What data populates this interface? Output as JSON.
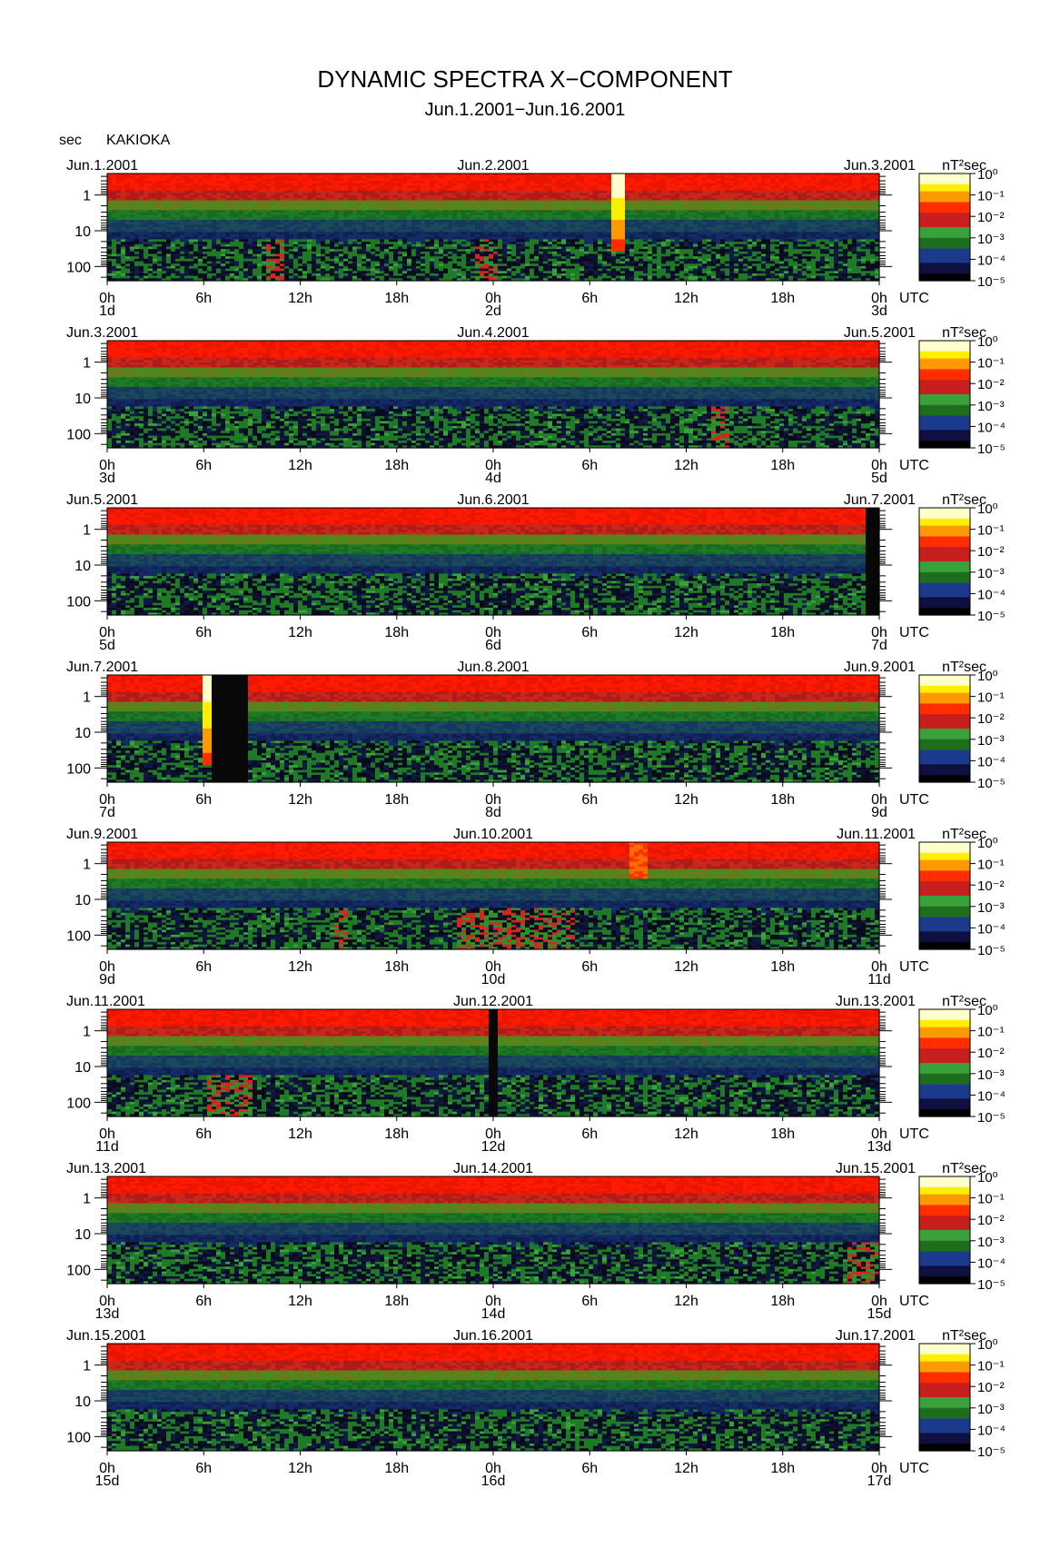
{
  "header": {
    "title": "DYNAMIC SPECTRA X−COMPONENT",
    "subtitle": "Jun.1.2001−Jun.16.2001",
    "unit_label": "sec",
    "station": "KAKIOKA"
  },
  "colors": {
    "background": "#ffffff",
    "colormap": [
      "#000000",
      "#101040",
      "#1c3a8c",
      "#1d6e1d",
      "#3aa13a",
      "#c81e1e",
      "#ff2d00",
      "#ff9900",
      "#ffee00",
      "#ffffcc"
    ]
  },
  "chart_data": {
    "type": "heatmap",
    "colorbar": {
      "unit": "nT²sec",
      "ticks": [
        "10⁰",
        "10⁻¹",
        "10⁻²",
        "10⁻³",
        "10⁻⁴",
        "10⁻⁵"
      ],
      "range_log10": [
        -5,
        0
      ]
    },
    "y_axis": {
      "scale": "log",
      "ticks": [
        "1",
        "10",
        "100"
      ],
      "range_sec": [
        0.25,
        250
      ]
    },
    "x_axis": {
      "ticks": [
        "0h",
        "6h",
        "12h",
        "18h",
        "0h",
        "6h",
        "12h",
        "18h",
        "0h"
      ],
      "unit_label": "UTC"
    },
    "panels": [
      {
        "left_date": "Jun.1.2001",
        "mid_date": "Jun.2.2001",
        "right_date": "Jun.3.2001",
        "day_labels": [
          "1d",
          "2d",
          "3d"
        ],
        "events": [
          {
            "type": "spike",
            "hour": 31.7,
            "width_h": 0.4,
            "depth": 0.72
          },
          {
            "type": "burst",
            "hour": 23.5,
            "width_h": 1.2
          },
          {
            "type": "burst",
            "hour": 10.5,
            "width_h": 1.0
          }
        ]
      },
      {
        "left_date": "Jun.3.2001",
        "mid_date": "Jun.4.2001",
        "right_date": "Jun.5.2001",
        "day_labels": [
          "3d",
          "4d",
          "5d"
        ],
        "events": [
          {
            "type": "burst",
            "hour": 38.0,
            "width_h": 0.8
          }
        ]
      },
      {
        "left_date": "Jun.5.2001",
        "mid_date": "Jun.6.2001",
        "right_date": "Jun.7.2001",
        "day_labels": [
          "5d",
          "6d",
          "7d"
        ],
        "events": [
          {
            "type": "gap",
            "hour": 47.6,
            "width_h": 0.35
          }
        ]
      },
      {
        "left_date": "Jun.7.2001",
        "mid_date": "Jun.8.2001",
        "right_date": "Jun.9.2001",
        "day_labels": [
          "7d",
          "8d",
          "9d"
        ],
        "events": [
          {
            "type": "spike",
            "hour": 6.4,
            "width_h": 0.5,
            "depth": 0.85
          },
          {
            "type": "gap",
            "hour": 7.7,
            "width_h": 1.9
          }
        ]
      },
      {
        "left_date": "Jun.9.2001",
        "mid_date": "Jun.10.2001",
        "right_date": "Jun.11.2001",
        "day_labels": [
          "9d",
          "10d",
          "11d"
        ],
        "events": [
          {
            "type": "burst",
            "hour": 25.5,
            "width_h": 7.0
          },
          {
            "type": "faint",
            "hour": 33.0,
            "width_h": 0.8
          },
          {
            "type": "burst",
            "hour": 14.5,
            "width_h": 0.5
          }
        ]
      },
      {
        "left_date": "Jun.11.2001",
        "mid_date": "Jun.12.2001",
        "right_date": "Jun.13.2001",
        "day_labels": [
          "11d",
          "12d",
          "13d"
        ],
        "events": [
          {
            "type": "gap",
            "hour": 24.0,
            "width_h": 0.35
          },
          {
            "type": "burst",
            "hour": 7.5,
            "width_h": 2.5
          }
        ]
      },
      {
        "left_date": "Jun.13.2001",
        "mid_date": "Jun.14.2001",
        "right_date": "Jun.15.2001",
        "day_labels": [
          "13d",
          "14d",
          "15d"
        ],
        "events": [
          {
            "type": "burst",
            "hour": 47.0,
            "width_h": 1.5
          }
        ]
      },
      {
        "left_date": "Jun.15.2001",
        "mid_date": "Jun.16.2001",
        "right_date": "Jun.17.2001",
        "day_labels": [
          "15d",
          "16d",
          "17d"
        ],
        "events": []
      }
    ]
  }
}
